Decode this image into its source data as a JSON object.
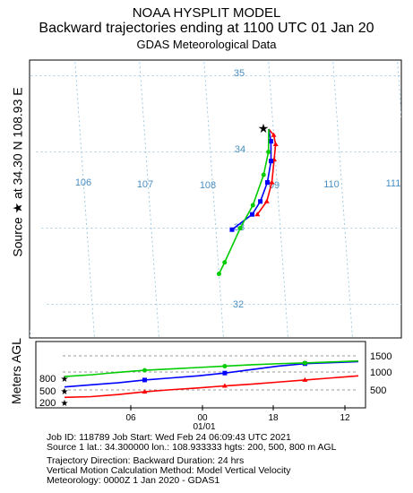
{
  "header": {
    "line1": "NOAA HYSPLIT MODEL",
    "line2": "Backward trajectories ending at 1100 UTC 01 Jan 20",
    "line3": "GDAS Meteorological Data"
  },
  "map": {
    "side_label": "Source ★ at  34.30 N  108.93 E",
    "lon_labels": [
      "106",
      "107",
      "108",
      "09",
      "110",
      "111"
    ],
    "lat_labels": [
      "35",
      "34",
      "33",
      "32"
    ],
    "grid_color": "#8fbfdb"
  },
  "height_panel": {
    "axis_label": "Meters AGL",
    "left_ticks": [
      "800",
      "500",
      "200"
    ],
    "right_ticks": [
      "1500",
      "1000",
      "500"
    ],
    "time_ticks": [
      "06",
      "00",
      "18",
      "12"
    ],
    "date_label": "01/01"
  },
  "chart_data": {
    "type": "line",
    "title": "Backward trajectories ending at 1100 UTC 01 Jan 20",
    "xlabel": "",
    "ylabel": "Meters AGL",
    "series": [
      {
        "color": "#ff0000",
        "start_height_m": 200,
        "path_lon_lat": [
          [
            108.93,
            34.3
          ],
          [
            109.0,
            34.22
          ],
          [
            109.02,
            34.1
          ],
          [
            108.98,
            33.9
          ],
          [
            108.92,
            33.6
          ],
          [
            108.82,
            33.35
          ],
          [
            108.66,
            33.18
          ]
        ],
        "height_m": [
          200,
          220,
          280,
          360,
          420,
          470,
          530,
          580,
          640,
          700,
          760,
          820
        ]
      },
      {
        "color": "#0000ff",
        "start_height_m": 500,
        "path_lon_lat": [
          [
            108.93,
            34.3
          ],
          [
            108.95,
            34.14
          ],
          [
            108.93,
            33.88
          ],
          [
            108.85,
            33.6
          ],
          [
            108.72,
            33.35
          ],
          [
            108.58,
            33.18
          ],
          [
            108.25,
            32.98
          ]
        ],
        "height_m": [
          500,
          560,
          620,
          700,
          760,
          820,
          900,
          1000,
          1100,
          1170,
          1200,
          1230
        ]
      },
      {
        "color": "#00cc00",
        "start_height_m": 800,
        "path_lon_lat": [
          [
            108.93,
            34.3
          ],
          [
            108.9,
            34.0
          ],
          [
            108.8,
            33.7
          ],
          [
            108.6,
            33.3
          ],
          [
            108.38,
            33.0
          ],
          [
            108.1,
            32.55
          ],
          [
            108.0,
            32.4
          ]
        ],
        "height_m": [
          800,
          850,
          920,
          980,
          1020,
          1060,
          1100,
          1140,
          1170,
          1190,
          1220,
          1250
        ]
      }
    ]
  },
  "footer": {
    "line1": "Job ID: 118789            Job Start: Wed Feb 24 06:09:43 UTC 2021",
    "line2": "Source 1 lat.: 34.300000  lon.: 108.933333  hgts: 200, 500, 800 m AGL",
    "line3": "Trajectory Direction: Backward       Duration: 24 hrs",
    "line4": "Vertical Motion Calculation Method:      Model Vertical Velocity",
    "line5": "Meteorology: 0000Z  1 Jan 2020 - GDAS1"
  }
}
